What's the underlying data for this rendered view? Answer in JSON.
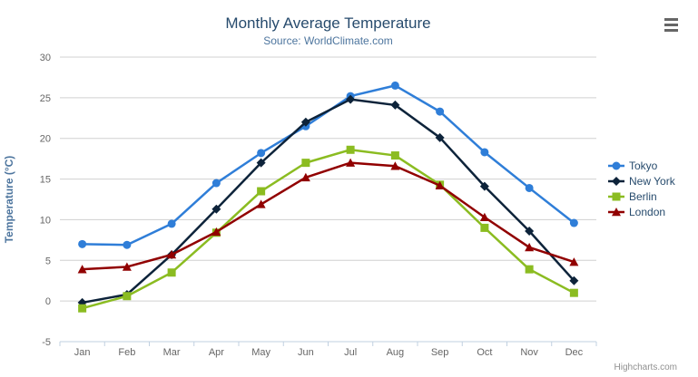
{
  "header": {
    "title": "Monthly Average Temperature",
    "subtitle": "Source: WorldClimate.com"
  },
  "toolbar": {
    "context_menu_icon": "hamburger-menu-icon"
  },
  "credits": "Highcharts.com",
  "palette": {
    "title_color": "#274b6d",
    "subtitle_color": "#4d759e",
    "axis_title_color": "#4d759e",
    "tick_label_color": "#666666",
    "grid_color": "#d0d0d0",
    "axis_line_color": "#c0d0e0",
    "legend_text_color": "#274b6d",
    "credits_color": "#909090",
    "menu_icon_color": "#666666"
  },
  "chart_data": {
    "type": "line",
    "title": "Monthly Average Temperature",
    "subtitle": "Source: WorldClimate.com",
    "categories": [
      "Jan",
      "Feb",
      "Mar",
      "Apr",
      "May",
      "Jun",
      "Jul",
      "Aug",
      "Sep",
      "Oct",
      "Nov",
      "Dec"
    ],
    "xlabel": "",
    "ylabel": "Temperature (°C)",
    "ylim": [
      -5,
      30
    ],
    "yticks": [
      -5,
      0,
      5,
      10,
      15,
      20,
      25,
      30
    ],
    "grid": true,
    "legend_position": "right",
    "series": [
      {
        "name": "Tokyo",
        "color": "#2f7ed8",
        "marker": "circle",
        "values": [
          7.0,
          6.9,
          9.5,
          14.5,
          18.2,
          21.5,
          25.2,
          26.5,
          23.3,
          18.3,
          13.9,
          9.6
        ]
      },
      {
        "name": "New York",
        "color": "#0d233a",
        "marker": "diamond",
        "values": [
          -0.2,
          0.8,
          5.7,
          11.3,
          17.0,
          22.0,
          24.8,
          24.1,
          20.1,
          14.1,
          8.6,
          2.5
        ]
      },
      {
        "name": "Berlin",
        "color": "#8bbc21",
        "marker": "square",
        "values": [
          -0.9,
          0.6,
          3.5,
          8.4,
          13.5,
          17.0,
          18.6,
          17.9,
          14.3,
          9.0,
          3.9,
          1.0
        ]
      },
      {
        "name": "London",
        "color": "#910000",
        "marker": "triangle",
        "values": [
          3.9,
          4.2,
          5.7,
          8.5,
          11.9,
          15.2,
          17.0,
          16.6,
          14.2,
          10.3,
          6.6,
          4.8
        ]
      }
    ]
  }
}
